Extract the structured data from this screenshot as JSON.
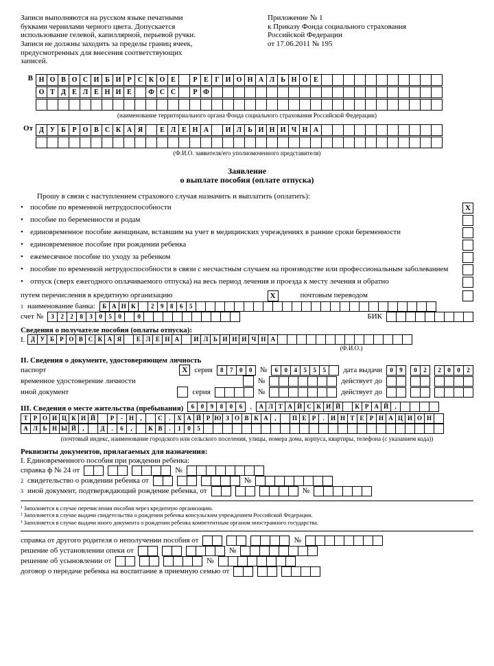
{
  "header": {
    "left": "Записи выполняются на русском языке печатными буквами чернилами черного цвета. Допускается использование гелевой, капиллярной, перьевой ручки. Записи не должны заходить за пределы границ ячеек, предусмотренных для внесения соответствующих записей.",
    "right_l1": "Приложение № 1",
    "right_l2": "к Приказу Фонда социального страхования",
    "right_l3": "Российской Федерации",
    "right_l4": "от 17.06.2011 № 195"
  },
  "org": {
    "label": "В",
    "row1": "Новосибирское региональное",
    "row2": "отделение ФСС РФ",
    "caption": "(наименование территориального органа Фонда социального страхования Российской Федерации)"
  },
  "from": {
    "label": "От",
    "row1": "Дубровская Елена Ильинична",
    "caption": "(Ф.И.О. заявителя/его уполномоченного представителя)"
  },
  "title": {
    "l1": "Заявление",
    "l2": "о выплате пособия (оплате отпуска)"
  },
  "intro": "Прошу в связи с наступлением страхового случая назначить и выплатить (оплатить):",
  "claims": [
    {
      "t": "пособие по временной нетрудоспособности",
      "x": true
    },
    {
      "t": "пособие по беременности и родам",
      "x": false
    },
    {
      "t": "единовременное пособие женщинам, вставшим на учет в медицинских учреждениях в ранние сроки беременности",
      "x": false,
      "rows": 2
    },
    {
      "t": "единовременное пособие при рождении ребенка",
      "x": false
    },
    {
      "t": "ежемесячное пособие по уходу за ребенком",
      "x": false
    },
    {
      "t": "пособие по временной нетрудоспособности в связи с несчастным случаем на производстве или профессиональным заболеванием",
      "x": false,
      "rows": 2
    },
    {
      "t": "отпуск (сверх ежегодного оплачиваемого отпуска) на весь период лечения и проезда к месту лечения и обратно",
      "x": false,
      "rows": 2
    }
  ],
  "payment": {
    "credit_label": "путем перечисления в кредитную организацию",
    "credit_x": true,
    "post_label": "почтовым переводом",
    "post_x": false,
    "bank_label": "наименование банка:",
    "bank_name": "БАНК 29865",
    "acct_label": "счет №",
    "acct": "32283050 0",
    "bik_label": "БИК"
  },
  "recipient": {
    "head": "Сведения о получателе пособия (оплаты отпуска):",
    "s1": "I.",
    "fio": "Дубровская Елена Ильинична",
    "fio_cap": "(Ф.И.О.)"
  },
  "identity": {
    "head": "II. Сведения о документе, удостоверяющем личность",
    "passport": "паспорт",
    "passport_x": true,
    "series": "серия",
    "series_v": "8700",
    "num": "№",
    "num_v": "604555",
    "issued": "дата выдачи",
    "issued_v": [
      "09",
      "02",
      "2002"
    ],
    "temp": "временное удостоверение личности",
    "valid": "действует до",
    "other": "иной документ"
  },
  "address": {
    "head": "III. Сведения о месте жительства (пребывания)",
    "index": "609806",
    "line1": "Алтайский край,",
    "line2": "Троицкий р-н, с.Хайрюзовка, пер.Интернацион",
    "line3": "альный, д.6, кв.105",
    "caption": "(почтовый индекс, наименование городского или сельского поселения, улицы, номера дома, корпуса, квартиры, телефона (с указанием кода))"
  },
  "requisites": {
    "head": "Реквизиты документов, прилагаемых для назначения:",
    "s1": "I. Единовременного пособия при рождении ребенка:",
    "r1": "справка ф № 24 от",
    "n": "№",
    "r2": "свидетельство о рождении ребенка от",
    "r3": "иной документ, подтверждающий рождение ребенка, от"
  },
  "footnotes": {
    "f1": "¹ Заполняется в случае перечисления пособия через кредитную организацию.",
    "f2": "² Заполняется в случае выдачи свидетельства о рождении ребенка консульским учреждением Российской Федерации.",
    "f3": "³ Заполняется в случае выдачи иного документа о рождении ребенка компетентным органом иностранного государства."
  },
  "bottom": {
    "r1": "справка от другого родителя о неполучении пособия от",
    "r2": "решение об установлении опеки от",
    "r3": "решение об усыновлении от",
    "r4": "договор о передаче ребенка на воспитание в приемную семью от",
    "n": "№"
  }
}
